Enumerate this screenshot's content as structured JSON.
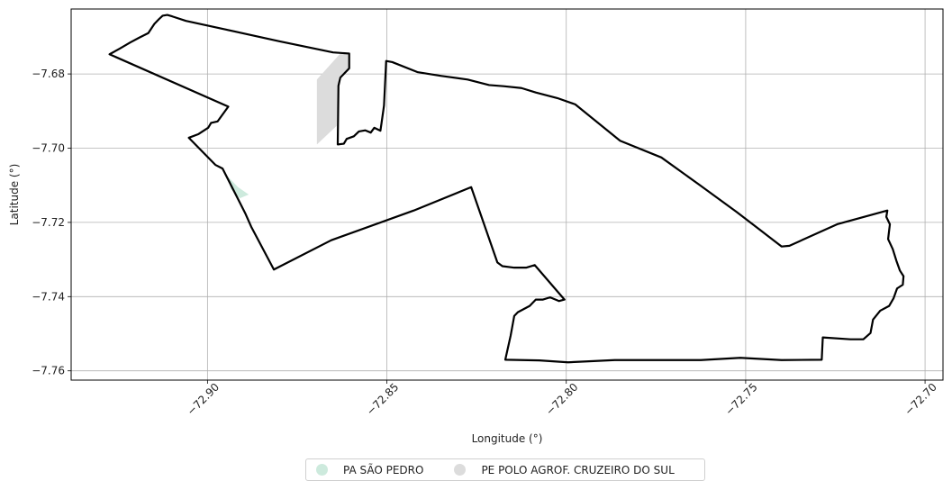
{
  "chart_data": {
    "type": "map",
    "xlabel": "Longitude (°)",
    "ylabel": "Latitude (°)",
    "xlim": [
      -72.938,
      -72.695
    ],
    "ylim": [
      -7.7625,
      -7.6625
    ],
    "grid": true,
    "x_ticks": [
      {
        "value": -72.9,
        "label": "−72.90"
      },
      {
        "value": -72.85,
        "label": "−72.85"
      },
      {
        "value": -72.8,
        "label": "−72.80"
      },
      {
        "value": -72.75,
        "label": "−72.75"
      },
      {
        "value": -72.7,
        "label": "−72.70"
      }
    ],
    "y_ticks": [
      {
        "value": -7.68,
        "label": "−7.68"
      },
      {
        "value": -7.7,
        "label": "−7.70"
      },
      {
        "value": -7.72,
        "label": "−7.72"
      },
      {
        "value": -7.74,
        "label": "−7.74"
      },
      {
        "value": -7.76,
        "label": "−7.76"
      }
    ],
    "legend": {
      "placement": "bottom-center",
      "items": [
        {
          "label": "PA SÃO PEDRO",
          "color": "#cdeadd"
        },
        {
          "label": "PE POLO AGROF. CRUZEIRO DO SUL",
          "color": "#dcdcdc"
        }
      ]
    },
    "areas": [
      {
        "name": "PA SÃO PEDRO",
        "color": "#cdeadd",
        "coords": [
          [
            -72.8945,
            -7.7075
          ],
          [
            -72.8915,
            -7.7105
          ],
          [
            -72.8885,
            -7.7125
          ],
          [
            -72.891,
            -7.7135
          ],
          [
            -72.8935,
            -7.711
          ]
        ]
      },
      {
        "name": "PE POLO AGROF. CRUZEIRO DO SUL",
        "color": "#dcdcdc",
        "coords": [
          [
            -72.8695,
            -7.6815
          ],
          [
            -72.863,
            -7.6745
          ],
          [
            -72.8605,
            -7.6745
          ],
          [
            -72.8605,
            -7.6785
          ],
          [
            -72.8635,
            -7.681
          ],
          [
            -72.864,
            -7.694
          ],
          [
            -72.8695,
            -7.699
          ]
        ]
      }
    ],
    "boundary": {
      "color": "#000000",
      "coords": [
        [
          -72.9273,
          -7.6747
        ],
        [
          -72.9245,
          -7.6732
        ],
        [
          -72.9215,
          -7.6715
        ],
        [
          -72.919,
          -7.6702
        ],
        [
          -72.9165,
          -7.669
        ],
        [
          -72.9148,
          -7.6665
        ],
        [
          -72.9135,
          -7.6652
        ],
        [
          -72.9125,
          -7.6643
        ],
        [
          -72.9112,
          -7.6641
        ],
        [
          -72.9098,
          -7.6645
        ],
        [
          -72.906,
          -7.6657
        ],
        [
          -72.895,
          -7.668
        ],
        [
          -72.88,
          -7.6712
        ],
        [
          -72.865,
          -7.6742
        ],
        [
          -72.8605,
          -7.6745
        ],
        [
          -72.8605,
          -7.6785
        ],
        [
          -72.863,
          -7.681
        ],
        [
          -72.8635,
          -7.6832
        ],
        [
          -72.8637,
          -7.699
        ],
        [
          -72.862,
          -7.6988
        ],
        [
          -72.8612,
          -7.6975
        ],
        [
          -72.8592,
          -7.6968
        ],
        [
          -72.8578,
          -7.6955
        ],
        [
          -72.856,
          -7.6952
        ],
        [
          -72.8545,
          -7.6958
        ],
        [
          -72.8535,
          -7.6945
        ],
        [
          -72.8518,
          -7.6953
        ],
        [
          -72.8515,
          -7.6933
        ],
        [
          -72.8508,
          -7.6885
        ],
        [
          -72.8502,
          -7.6765
        ],
        [
          -72.8485,
          -7.6768
        ],
        [
          -72.8415,
          -7.6795
        ],
        [
          -72.835,
          -7.6805
        ],
        [
          -72.8275,
          -7.6815
        ],
        [
          -72.8215,
          -7.683
        ],
        [
          -72.8175,
          -7.6833
        ],
        [
          -72.8125,
          -7.6838
        ],
        [
          -72.8085,
          -7.685
        ],
        [
          -72.8025,
          -7.6865
        ],
        [
          -72.7975,
          -7.6882
        ],
        [
          -72.785,
          -7.698
        ],
        [
          -72.7735,
          -7.7025
        ],
        [
          -72.763,
          -7.7098
        ],
        [
          -72.7525,
          -7.7172
        ],
        [
          -72.744,
          -7.7235
        ],
        [
          -72.74,
          -7.7265
        ],
        [
          -72.7378,
          -7.7263
        ],
        [
          -72.7245,
          -7.7205
        ],
        [
          -72.7105,
          -7.7168
        ],
        [
          -72.7108,
          -7.7185
        ],
        [
          -72.7098,
          -7.7205
        ],
        [
          -72.7103,
          -7.7245
        ],
        [
          -72.709,
          -7.7272
        ],
        [
          -72.708,
          -7.7303
        ],
        [
          -72.707,
          -7.733
        ],
        [
          -72.706,
          -7.7345
        ],
        [
          -72.7062,
          -7.7368
        ],
        [
          -72.7078,
          -7.7378
        ],
        [
          -72.7088,
          -7.7405
        ],
        [
          -72.71,
          -7.7425
        ],
        [
          -72.7125,
          -7.7438
        ],
        [
          -72.7145,
          -7.7462
        ],
        [
          -72.7152,
          -7.7498
        ],
        [
          -72.7172,
          -7.7515
        ],
        [
          -72.7208,
          -7.7515
        ],
        [
          -72.7285,
          -7.751
        ],
        [
          -72.7288,
          -7.757
        ],
        [
          -72.74,
          -7.7571
        ],
        [
          -72.7515,
          -7.7565
        ],
        [
          -72.7625,
          -7.7571
        ],
        [
          -72.7735,
          -7.7571
        ],
        [
          -72.7865,
          -7.7571
        ],
        [
          -72.795,
          -7.7575
        ],
        [
          -72.7995,
          -7.7577
        ],
        [
          -72.8075,
          -7.7572
        ],
        [
          -72.817,
          -7.757
        ],
        [
          -72.8155,
          -7.7505
        ],
        [
          -72.8145,
          -7.7452
        ],
        [
          -72.8135,
          -7.7442
        ],
        [
          -72.8102,
          -7.7425
        ],
        [
          -72.8085,
          -7.7408
        ],
        [
          -72.8065,
          -7.7408
        ],
        [
          -72.8045,
          -7.7402
        ],
        [
          -72.802,
          -7.7412
        ],
        [
          -72.8005,
          -7.7408
        ],
        [
          -72.8088,
          -7.7315
        ],
        [
          -72.8112,
          -7.7322
        ],
        [
          -72.8145,
          -7.7322
        ],
        [
          -72.8178,
          -7.7318
        ],
        [
          -72.8192,
          -7.7308
        ],
        [
          -72.8265,
          -7.7105
        ],
        [
          -72.8425,
          -7.7168
        ],
        [
          -72.8655,
          -7.7248
        ],
        [
          -72.8815,
          -7.7327
        ],
        [
          -72.8878,
          -7.7212
        ],
        [
          -72.8895,
          -7.7175
        ],
        [
          -72.8958,
          -7.7055
        ],
        [
          -72.8978,
          -7.7045
        ],
        [
          -72.9052,
          -7.6972
        ],
        [
          -72.9025,
          -7.6962
        ],
        [
          -72.8998,
          -7.6945
        ],
        [
          -72.899,
          -7.6932
        ],
        [
          -72.8972,
          -7.6928
        ],
        [
          -72.8942,
          -7.6888
        ],
        [
          -72.9273,
          -7.6747
        ]
      ]
    }
  }
}
